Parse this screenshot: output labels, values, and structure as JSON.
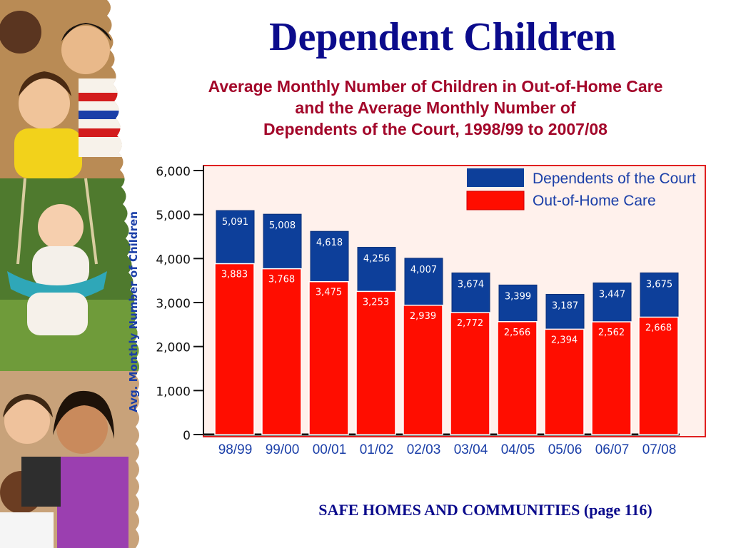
{
  "slide": {
    "title": "Dependent Children",
    "subtitle_lines": [
      "Average Monthly Number of Children in Out-of-Home Care",
      "and the Average Monthly Number of",
      "Dependents of the Court, 1998/99 to 2007/08"
    ],
    "footer": "SAFE HOMES AND COMMUNITIES  (page 116)"
  },
  "colors": {
    "title": "#0b0b8c",
    "subtitle": "#a3072a",
    "dependents": "#0d3f9a",
    "out_of_home": "#ff0d00",
    "plot_bg": "#fff1ec",
    "plot_border": "#e02020"
  },
  "chart_data": {
    "type": "bar",
    "title": "",
    "xlabel": "",
    "ylabel": "Avg. Monthly Number of Children",
    "ylim": [
      0,
      6000
    ],
    "yticks": [
      "0",
      "1,000",
      "2,000",
      "3,000",
      "4,000",
      "5,000",
      "6,000"
    ],
    "categories": [
      "98/99",
      "99/00",
      "00/01",
      "01/02",
      "02/03",
      "03/04",
      "04/05",
      "05/06",
      "06/07",
      "07/08"
    ],
    "legend_position": "top-right",
    "series": [
      {
        "name": "Dependents of the Court",
        "values": [
          5091,
          5008,
          4618,
          4256,
          4007,
          3674,
          3399,
          3187,
          3447,
          3675
        ],
        "labels": [
          "5,091",
          "5,008",
          "4,618",
          "4,256",
          "4,007",
          "3,674",
          "3,399",
          "3,187",
          "3,447",
          "3,675"
        ]
      },
      {
        "name": "Out-of-Home Care",
        "values": [
          3883,
          3768,
          3475,
          3253,
          2939,
          2772,
          2566,
          2394,
          2562,
          2668
        ],
        "labels": [
          "3,883",
          "3,768",
          "3,475",
          "3,253",
          "2,939",
          "2,772",
          "2,566",
          "2,394",
          "2,562",
          "2,668"
        ]
      }
    ]
  }
}
